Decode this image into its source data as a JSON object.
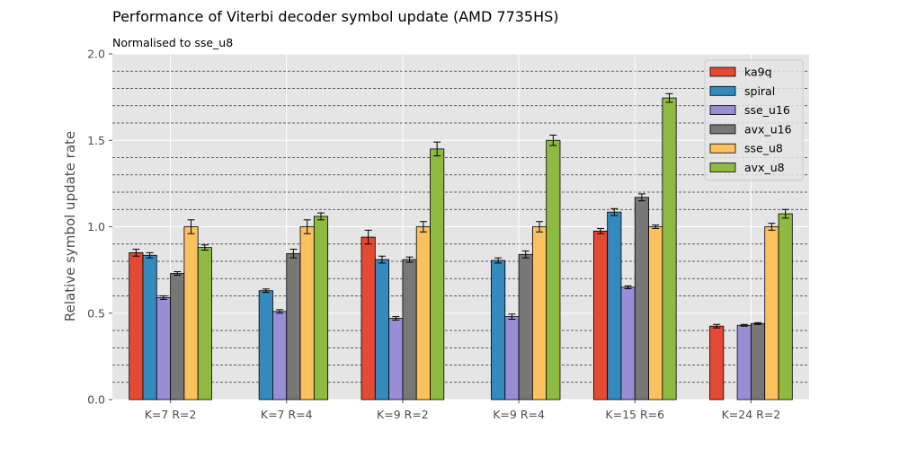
{
  "chart_data": {
    "type": "bar",
    "title": "Performance of Viterbi decoder symbol update (AMD 7735HS)",
    "subtitle": "Normalised to sse_u8",
    "xlabel": "",
    "ylabel": "Relative symbol update rate",
    "ylim": [
      0,
      2.0
    ],
    "yticks": [
      "0.0",
      "0.5",
      "1.0",
      "1.5",
      "2.0"
    ],
    "categories": [
      "K=7 R=2",
      "K=7 R=4",
      "K=9 R=2",
      "K=9 R=4",
      "K=15 R=6",
      "K=24 R=2"
    ],
    "grid": "on",
    "legend_position": "top-right",
    "series": [
      {
        "name": "ka9q",
        "color": "#E24A33",
        "values": [
          0.85,
          null,
          0.94,
          null,
          0.975,
          0.425
        ],
        "errors": [
          0.02,
          null,
          0.04,
          null,
          0.015,
          0.01
        ]
      },
      {
        "name": "spiral",
        "color": "#348ABD",
        "values": [
          0.835,
          0.63,
          0.81,
          0.805,
          1.085,
          null
        ],
        "errors": [
          0.015,
          0.01,
          0.02,
          0.015,
          0.02,
          null
        ]
      },
      {
        "name": "sse_u16",
        "color": "#988ED5",
        "values": [
          0.59,
          0.51,
          0.47,
          0.48,
          0.65,
          0.43
        ],
        "errors": [
          0.01,
          0.01,
          0.01,
          0.015,
          0.008,
          0.005
        ]
      },
      {
        "name": "avx_u16",
        "color": "#777777",
        "values": [
          0.73,
          0.845,
          0.81,
          0.84,
          1.17,
          0.44
        ],
        "errors": [
          0.01,
          0.025,
          0.015,
          0.02,
          0.02,
          0.005
        ]
      },
      {
        "name": "sse_u8",
        "color": "#FBC15E",
        "values": [
          1.0,
          1.0,
          1.0,
          1.0,
          1.0,
          1.0
        ],
        "errors": [
          0.04,
          0.04,
          0.03,
          0.03,
          0.01,
          0.02
        ]
      },
      {
        "name": "avx_u8",
        "color": "#8EBA42",
        "values": [
          0.88,
          1.06,
          1.45,
          1.5,
          1.745,
          1.075
        ],
        "errors": [
          0.015,
          0.02,
          0.04,
          0.03,
          0.025,
          0.025
        ]
      }
    ]
  }
}
